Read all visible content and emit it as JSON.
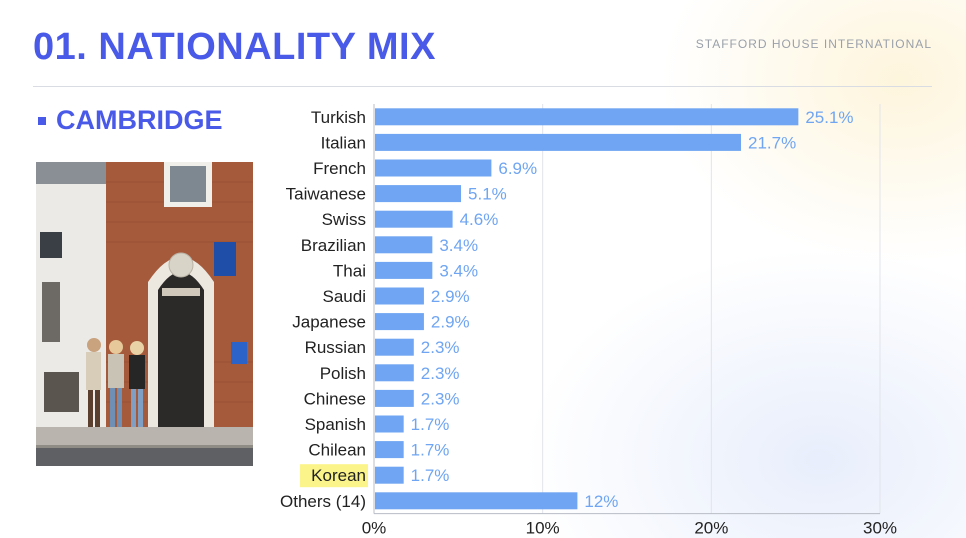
{
  "header": {
    "title": "01. NATIONALITY MIX",
    "brand": "STAFFORD HOUSE INTERNATIONAL",
    "subtitle": "CAMBRIDGE"
  },
  "colors": {
    "accent": "#4a5ae8",
    "bar": "#6fa5f2",
    "label": "#6fa5f2",
    "highlight": "#fbf48a"
  },
  "chart_data": {
    "type": "bar",
    "orientation": "horizontal",
    "categories": [
      "Turkish",
      "Italian",
      "French",
      "Taiwanese",
      "Swiss",
      "Brazilian",
      "Thai",
      "Saudi",
      "Japanese",
      "Russian",
      "Polish",
      "Chinese",
      "Spanish",
      "Chilean",
      "Korean",
      "Others (14)"
    ],
    "values": [
      25.1,
      21.7,
      6.9,
      5.1,
      4.6,
      3.4,
      3.4,
      2.9,
      2.9,
      2.3,
      2.3,
      2.3,
      1.7,
      1.7,
      1.7,
      12
    ],
    "data_labels": [
      "25.1%",
      "21.7%",
      "6.9%",
      "5.1%",
      "4.6%",
      "3.4%",
      "3.4%",
      "2.9%",
      "2.9%",
      "2.3%",
      "2.3%",
      "2.3%",
      "1.7%",
      "1.7%",
      "1.7%",
      "12%"
    ],
    "highlighted_category": "Korean",
    "xlim": [
      0,
      30
    ],
    "xticks": [
      0,
      10,
      20,
      30
    ],
    "xtick_labels": [
      "0%",
      "10%",
      "20%",
      "30%"
    ],
    "grid": true,
    "title": "",
    "xlabel": "",
    "ylabel": ""
  }
}
